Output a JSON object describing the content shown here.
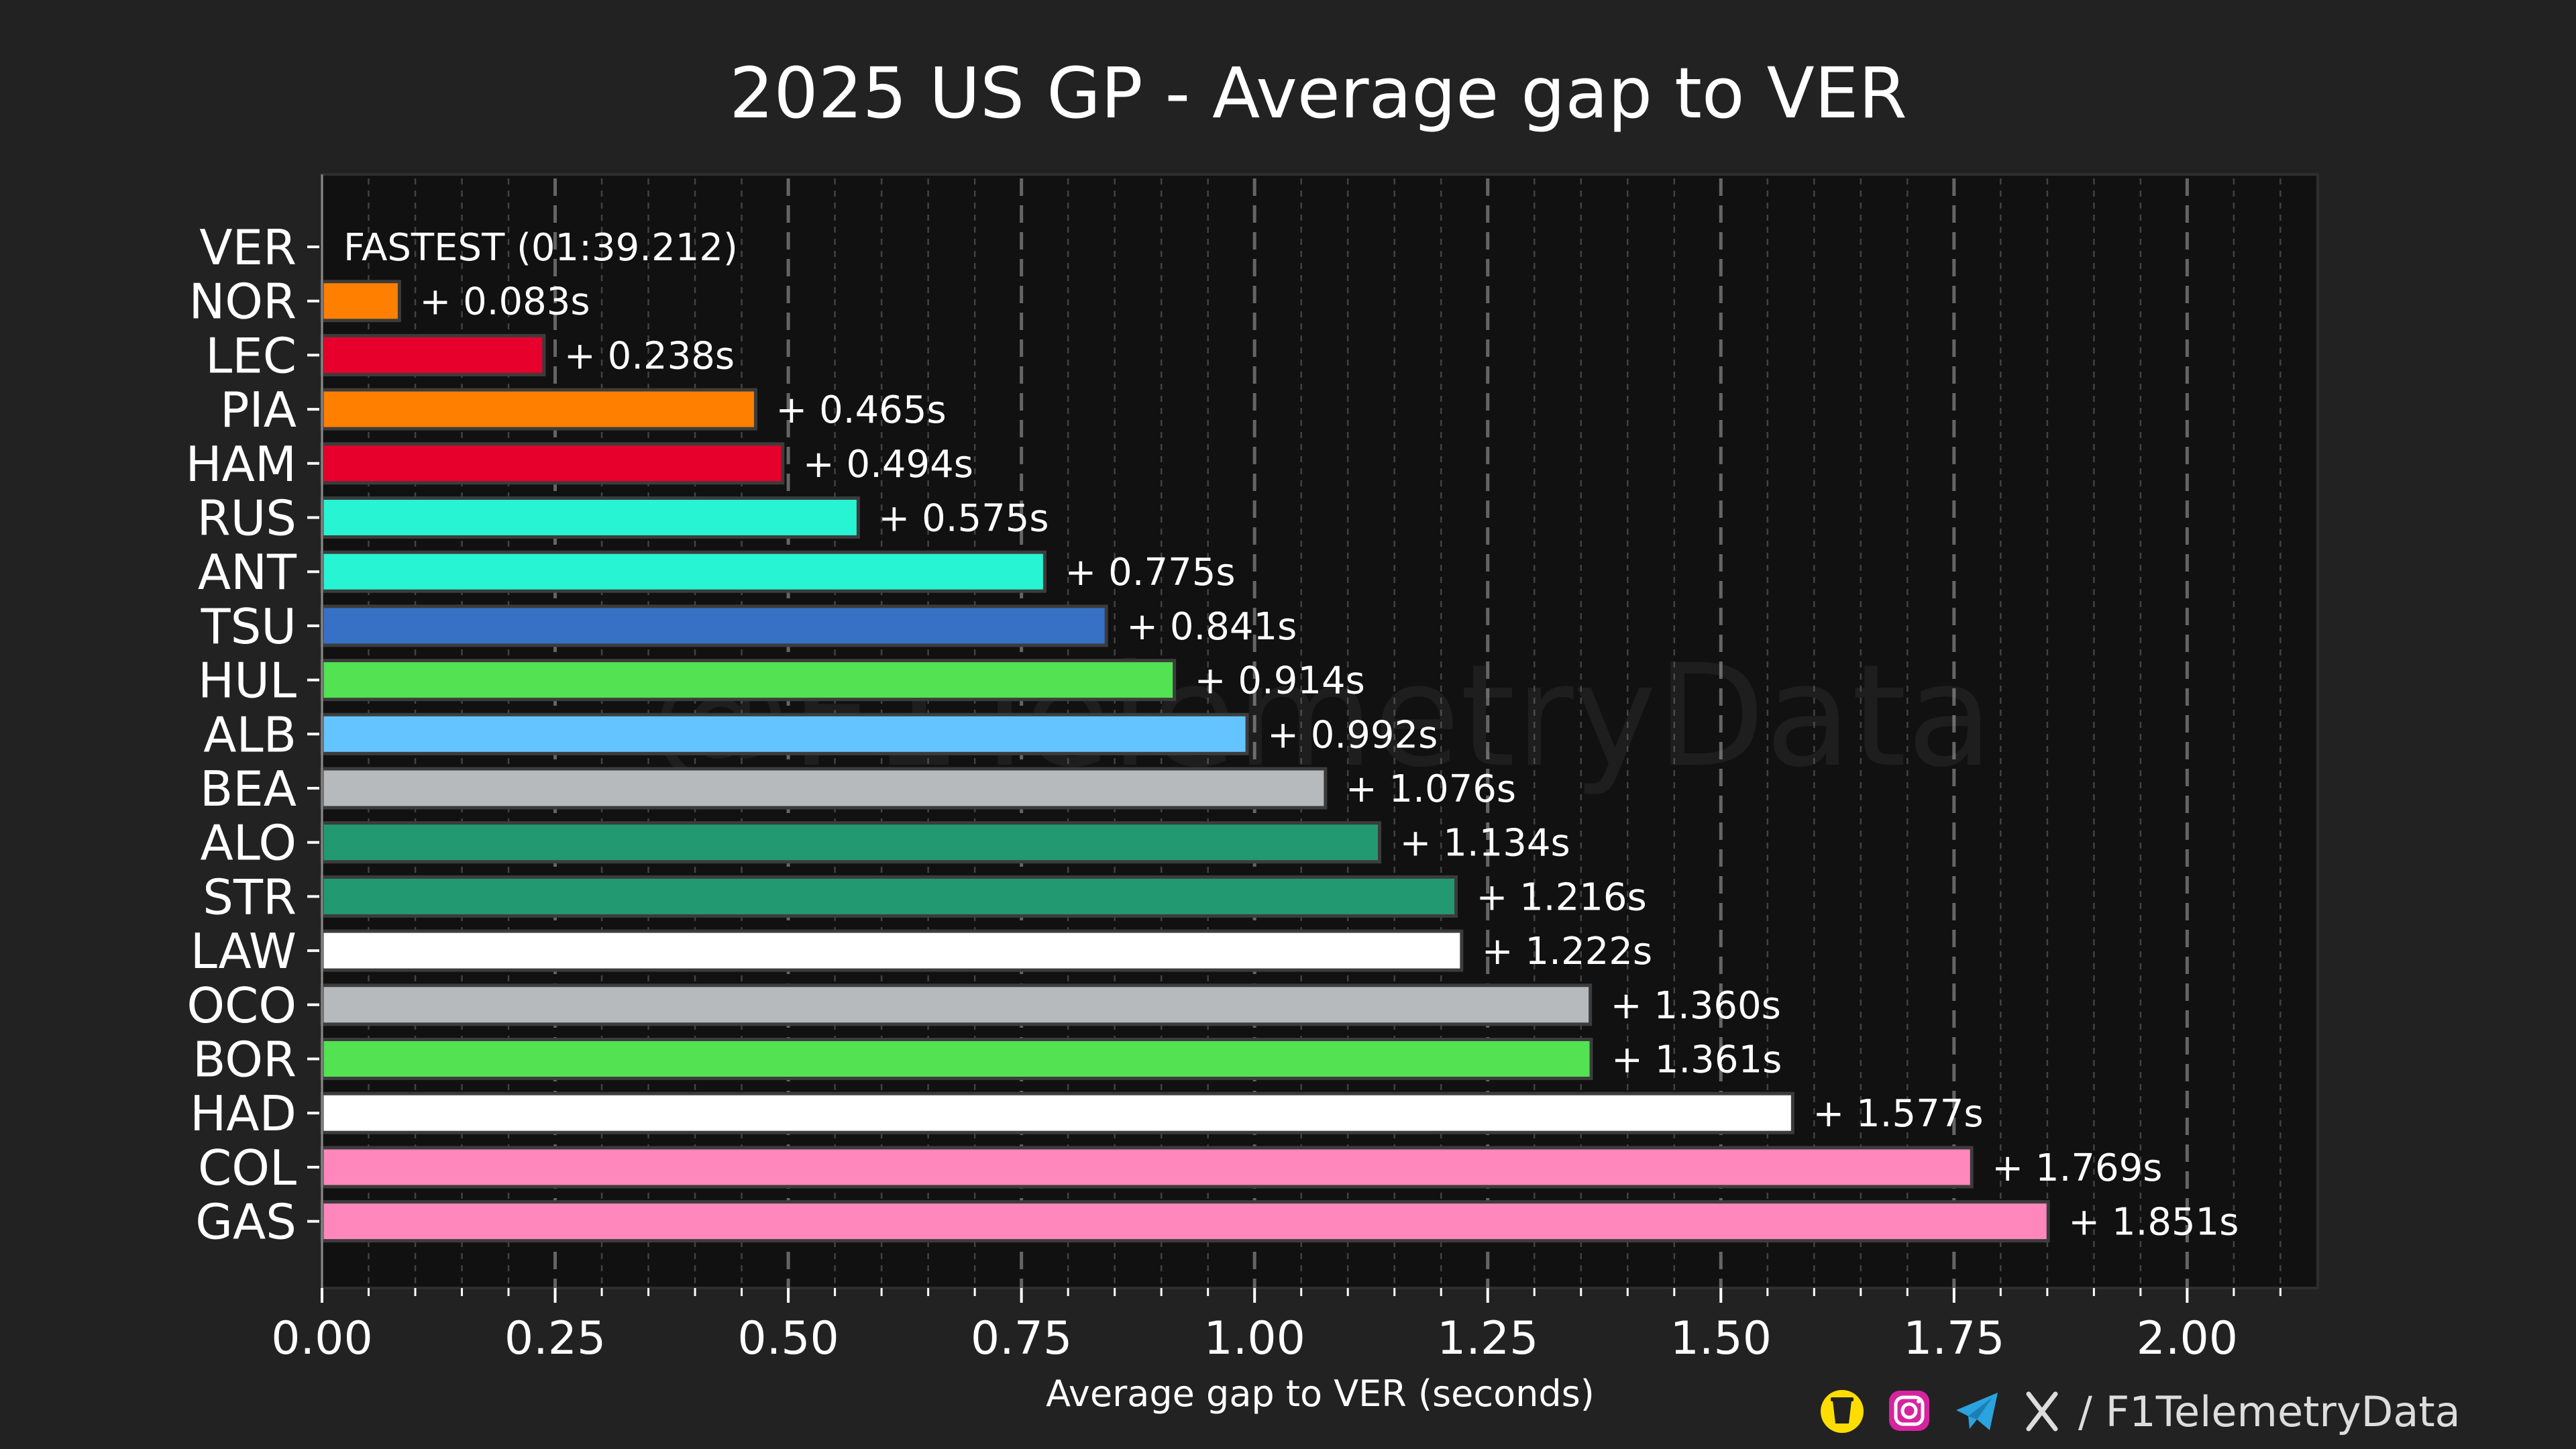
{
  "chart_data": {
    "type": "bar",
    "orientation": "horizontal",
    "title": "2025 US GP - Average gap to VER",
    "xlabel": "Average gap to VER (seconds)",
    "ylabel": "",
    "xlim": [
      0,
      2.14
    ],
    "xticks": [
      "0.00",
      "0.25",
      "0.50",
      "0.75",
      "1.00",
      "1.25",
      "1.50",
      "1.75",
      "2.00"
    ],
    "grid": "vertical dashed major and minor lines",
    "categories": [
      "VER",
      "NOR",
      "LEC",
      "PIA",
      "HAM",
      "RUS",
      "ANT",
      "TSU",
      "HUL",
      "ALB",
      "BEA",
      "ALO",
      "STR",
      "LAW",
      "OCO",
      "BOR",
      "HAD",
      "COL",
      "GAS"
    ],
    "values": [
      0,
      0.083,
      0.238,
      0.465,
      0.494,
      0.575,
      0.775,
      0.841,
      0.914,
      0.992,
      1.076,
      1.134,
      1.216,
      1.222,
      1.36,
      1.361,
      1.577,
      1.769,
      1.851
    ],
    "data_labels": [
      "FASTEST (01:39.212)",
      "+ 0.083s",
      "+ 0.238s",
      "+ 0.465s",
      "+ 0.494s",
      "+ 0.575s",
      "+ 0.775s",
      "+ 0.841s",
      "+ 0.914s",
      "+ 0.992s",
      "+ 1.076s",
      "+ 1.134s",
      "+ 1.216s",
      "+ 1.222s",
      "+ 1.360s",
      "+ 1.361s",
      "+ 1.577s",
      "+ 1.769s",
      "+ 1.851s"
    ],
    "colors": [
      "#1e41ff",
      "#ff8000",
      "#e8002d",
      "#ff8000",
      "#e8002d",
      "#27f4d2",
      "#27f4d2",
      "#3671c6",
      "#52e252",
      "#64c4ff",
      "#b6babd",
      "#229971",
      "#229971",
      "#ffffff",
      "#b6babd",
      "#52e252",
      "#ffffff",
      "#ff87bc",
      "#ff87bc"
    ]
  },
  "watermark": "@F1TelemetryData",
  "credit": {
    "text": "/ F1TelemetryData",
    "icons": [
      "buymeacoffee-icon",
      "instagram-icon",
      "telegram-icon",
      "x-icon"
    ]
  },
  "colors": {
    "background": "#222222",
    "plot_background": "#111111",
    "grid": "#6a6a6a"
  }
}
